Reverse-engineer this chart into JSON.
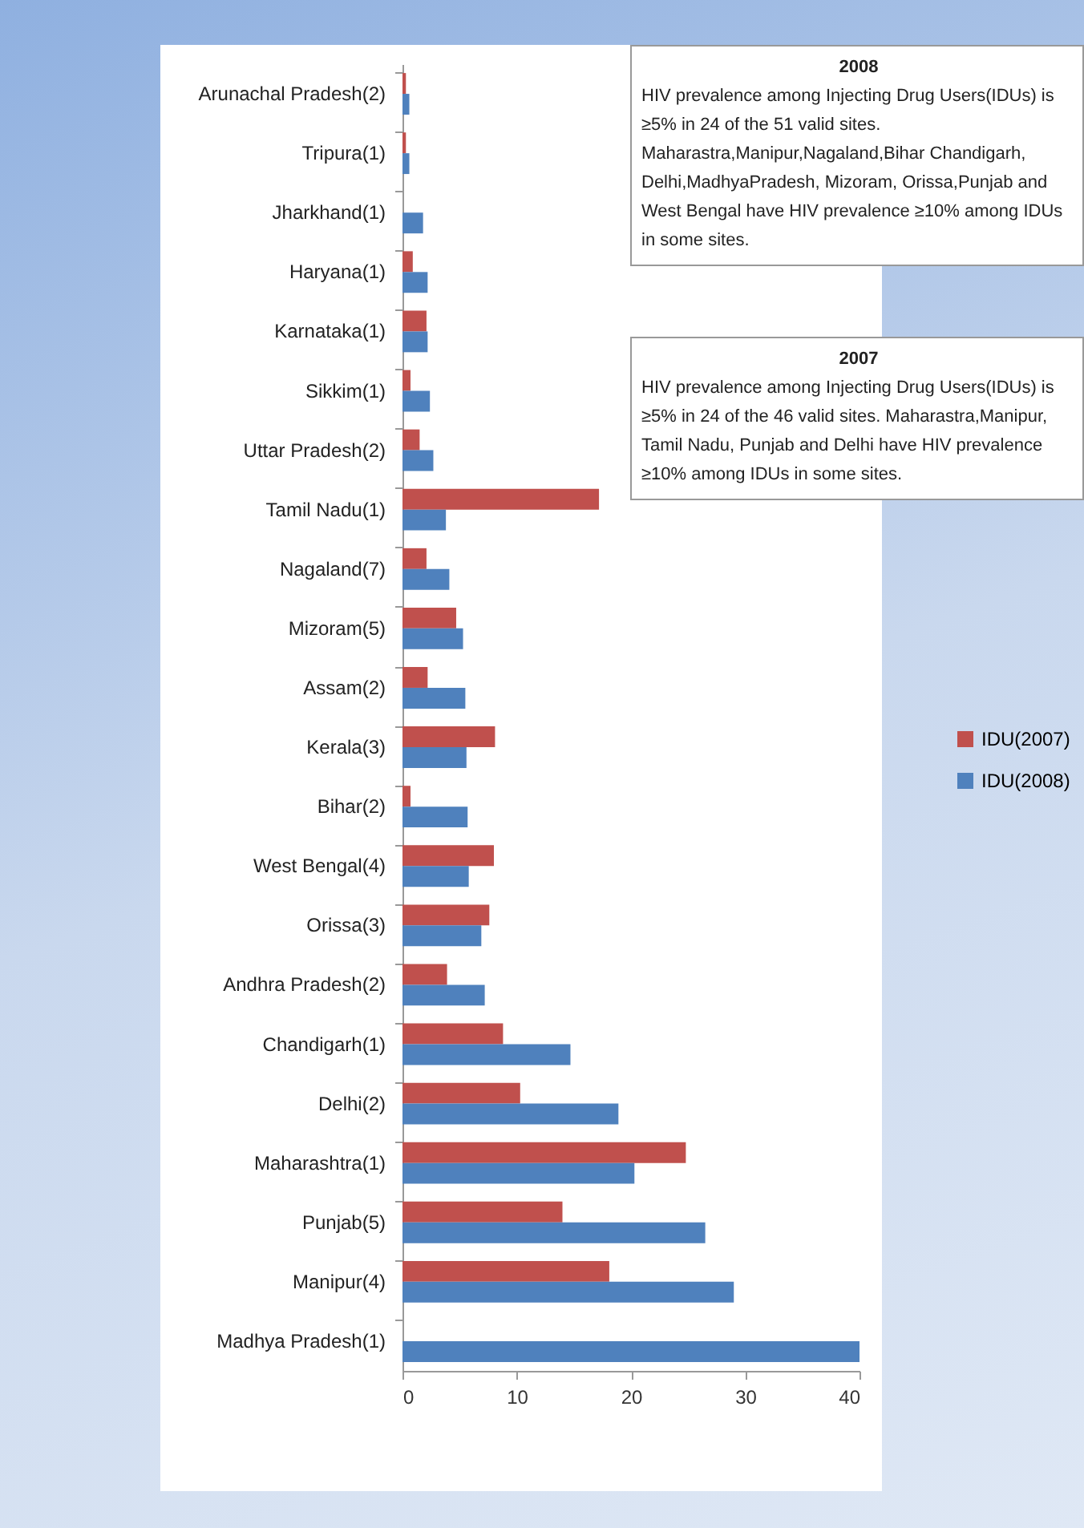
{
  "chart_data": {
    "type": "bar",
    "orientation": "horizontal",
    "categories": [
      "Arunachal Pradesh(2)",
      "Tripura(1)",
      "Jharkhand(1)",
      "Haryana(1)",
      "Karnataka(1)",
      "Sikkim(1)",
      "Uttar Pradesh(2)",
      "Tamil Nadu(1)",
      "Nagaland(7)",
      "Mizoram(5)",
      "Assam(2)",
      "Kerala(3)",
      "Bihar(2)",
      "West Bengal(4)",
      "Orissa(3)",
      "Andhra Pradesh(2)",
      "Chandigarh(1)",
      "Delhi(2)",
      "Maharashtra(1)",
      "Punjab(5)",
      "Manipur(4)",
      "Madhya Pradesh(1)"
    ],
    "series": [
      {
        "name": "IDU(2007)",
        "color": "#c0504d",
        "values": [
          0.3,
          0.3,
          null,
          0.9,
          2.1,
          0.7,
          1.5,
          17.2,
          2.1,
          4.7,
          2.2,
          8.1,
          0.7,
          8.0,
          7.6,
          3.9,
          8.8,
          10.3,
          24.8,
          14.0,
          18.1,
          null
        ]
      },
      {
        "name": "IDU(2008)",
        "color": "#4f81bd",
        "values": [
          0.6,
          0.6,
          1.8,
          2.2,
          2.2,
          2.4,
          2.7,
          3.8,
          4.1,
          5.3,
          5.5,
          5.6,
          5.7,
          5.8,
          6.9,
          7.2,
          14.7,
          18.9,
          20.3,
          26.5,
          29.0,
          40.0
        ]
      }
    ],
    "xlim": [
      0,
      40
    ],
    "xticks": [
      0,
      10,
      20,
      30,
      40
    ],
    "grid": false,
    "legend": "right",
    "annotations": [
      "2008",
      "HIV prevalence  among  Injecting Drug Users(IDUs) is ≥5% in 24  of the  51 valid sites. Maharastra,Manipur,Nagaland,Bihar Chandigarh, Delhi,MadhyaPradesh,  Mizoram, Orissa,Punjab and West Bengal have HIV prevalence ≥10% among  IDUs in some  sites.",
      "2007",
      "HIV prevalence  among  Injecting Drug Users(IDUs) is ≥5% in 24  of the  46 valid sites. Maharastra,Manipur,  Tamil Nadu, Punjab and Delhi  have HIV prevalence ≥10% among  IDUs in some  sites."
    ]
  }
}
